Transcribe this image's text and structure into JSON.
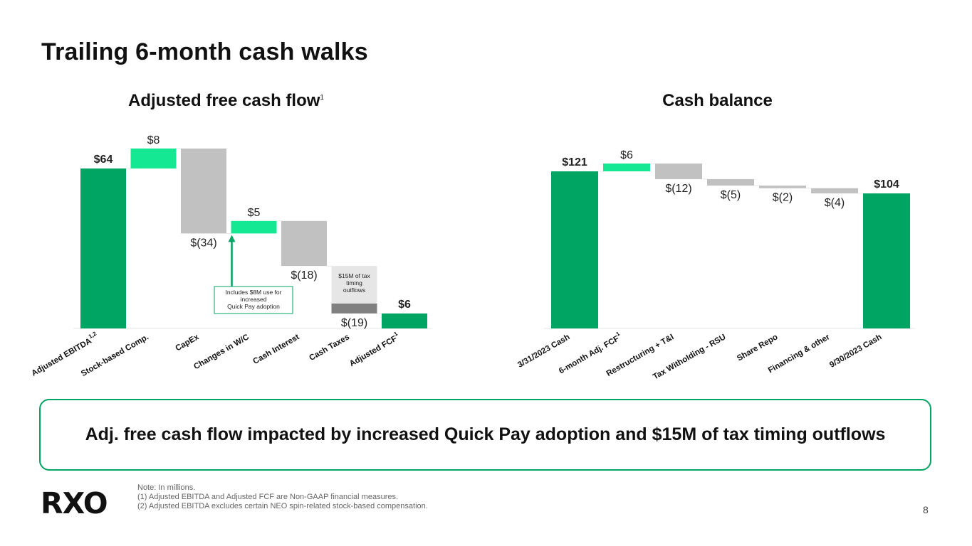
{
  "page": {
    "title": "Trailing 6-month cash walks",
    "callout": "Adj. free cash flow impacted by increased Quick Pay adoption and $15M of tax timing outflows",
    "notes": [
      "Note: In millions.",
      "(1)  Adjusted EBITDA and Adjusted FCF are Non-GAAP financial measures.",
      "(2)  Adjusted EBITDA excludes certain NEO spin-related stock-based compensation."
    ],
    "logo": "RXO",
    "page_number": "8"
  },
  "colors": {
    "total": "#00a463",
    "increase": "#14e893",
    "decrease": "#c1c1c1",
    "tax_timing": "#808080",
    "tax_timing_box": "#e6e6e6"
  },
  "chart_data": [
    {
      "type": "bar",
      "subtype": "waterfall",
      "title": "Adjusted free cash flow",
      "title_superscript": "1",
      "categories": [
        "Adjusted EBITDA",
        "Stock-based Comp.",
        "CapEx",
        "Changes in W/C",
        "Cash Interest",
        "Cash Taxes",
        "Adjusted FCF"
      ],
      "category_superscripts": [
        "1,2",
        "",
        "",
        "",
        "",
        "",
        "1"
      ],
      "values": [
        64,
        8,
        -34,
        5,
        -18,
        -19,
        6
      ],
      "kinds": [
        "total",
        "increase",
        "decrease",
        "increase",
        "decrease",
        "decrease",
        "total"
      ],
      "data_labels": [
        "$64",
        "$8",
        "$(34)",
        "$5",
        "$(18)",
        "$(19)",
        "$6"
      ],
      "tax_timing_portion": 15,
      "annotations": [
        {
          "target": "Changes in W/C",
          "text": [
            "Includes $8M use for",
            "increased",
            "Quick Pay adoption"
          ]
        },
        {
          "target": "Cash Taxes",
          "text": [
            "$15M of tax",
            "timing",
            "outflows"
          ]
        }
      ],
      "ylim": [
        0,
        75
      ]
    },
    {
      "type": "bar",
      "subtype": "waterfall",
      "title": "Cash balance",
      "categories": [
        "3/31/2023 Cash",
        "6-month Adj. FCF",
        "Restructuring + T&I",
        "Tax Witholding - RSU",
        "Share Repo",
        "Financing & other",
        "9/30/2023 Cash"
      ],
      "category_superscripts": [
        "",
        "1",
        "",
        "",
        "",
        "",
        ""
      ],
      "values": [
        121,
        6,
        -12,
        -5,
        -2,
        -4,
        104
      ],
      "kinds": [
        "total",
        "increase",
        "decrease",
        "decrease",
        "decrease",
        "decrease",
        "total"
      ],
      "data_labels": [
        "$121",
        "$6",
        "$(12)",
        "$(5)",
        "$(2)",
        "$(4)",
        "$104"
      ],
      "ylim": [
        0,
        135
      ]
    }
  ]
}
